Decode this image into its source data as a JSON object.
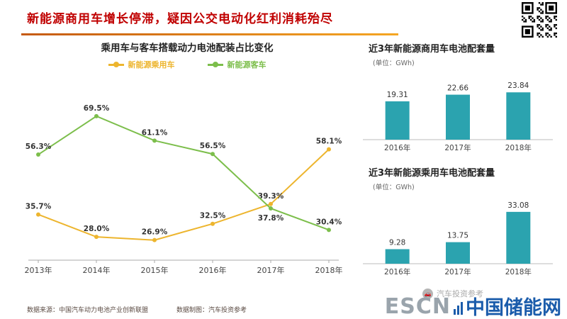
{
  "header": {
    "title": "新能源商用车增长停滞，疑因公交电动化红利消耗殆尽"
  },
  "footer": {
    "source_label": "数据来源：中国汽车动力电池产业创新联盟",
    "credit_label": "数据制图：汽车投资参考",
    "watermark_text": "汽车投资参考",
    "logo_en": "ESCN",
    "logo_cn": "中国储能网"
  },
  "icons": {
    "qr_code": "qr-code"
  },
  "colors": {
    "title_red": "#c00000",
    "underline_orange": "#e07b1a",
    "bar_teal": "#2BA3AF",
    "line_yellow": "#EDB52E",
    "line_green": "#7CBE4B"
  },
  "chart_data": [
    {
      "id": "share-line",
      "type": "line",
      "title": "乘用车与客车搭载动力电池配装占比变化",
      "categories": [
        "2013年",
        "2014年",
        "2015年",
        "2016年",
        "2017年",
        "2018年"
      ],
      "series": [
        {
          "name": "新能源乘用车",
          "color": "#EDB52E",
          "values": [
            35.7,
            28.0,
            26.9,
            32.5,
            39.3,
            58.1
          ]
        },
        {
          "name": "新能源客车",
          "color": "#7CBE4B",
          "values": [
            56.3,
            69.5,
            61.1,
            56.5,
            37.8,
            30.4
          ]
        }
      ],
      "unit": "%",
      "ylim": [
        20,
        78
      ],
      "grid": false,
      "legend_position": "top"
    },
    {
      "id": "commercial-bars",
      "type": "bar",
      "title": "近3年新能源商用车电池配套量",
      "unit_label": "(单位：GWh)",
      "categories": [
        "2016年",
        "2017年",
        "2018年"
      ],
      "values": [
        19.31,
        22.66,
        23.84
      ],
      "bar_color": "#2BA3AF",
      "ylim": [
        0,
        30
      ],
      "grid": false
    },
    {
      "id": "passenger-bars",
      "type": "bar",
      "title": "近3年新能源乘用车电池配套量",
      "unit_label": "(单位：GWh)",
      "categories": [
        "2016年",
        "2017年",
        "2018年"
      ],
      "values": [
        9.28,
        13.75,
        33.08
      ],
      "bar_color": "#2BA3AF",
      "ylim": [
        0,
        38
      ],
      "grid": false
    }
  ]
}
